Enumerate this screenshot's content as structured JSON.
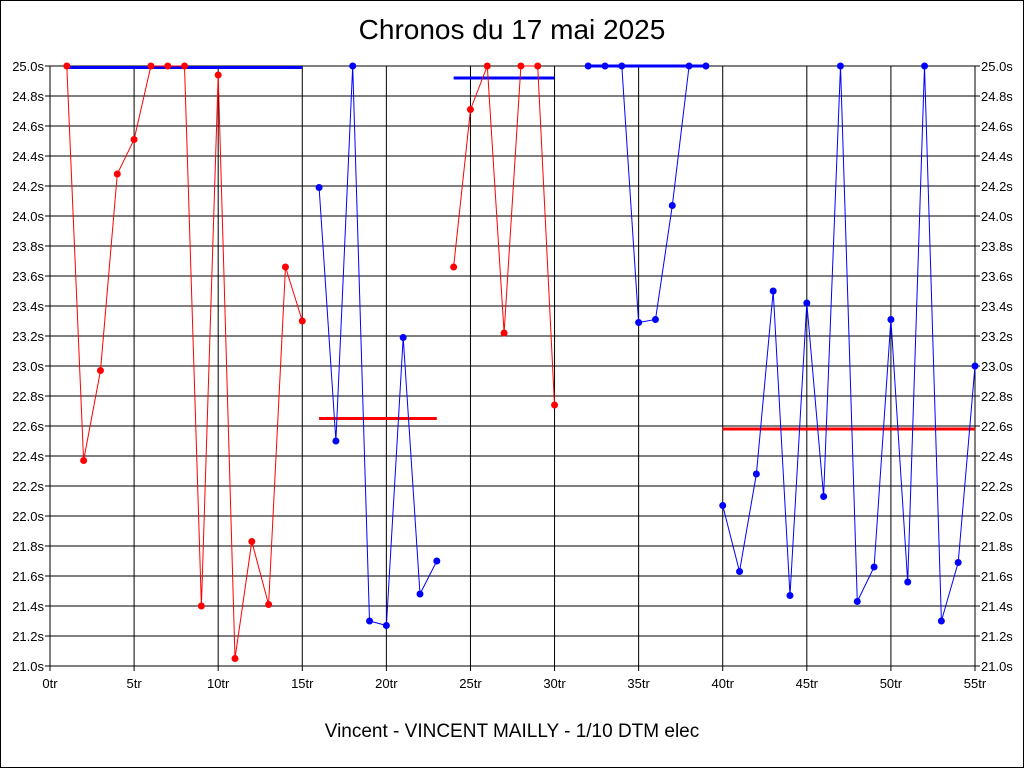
{
  "chart_data": {
    "type": "line",
    "title": "Chronos du 17 mai 2025",
    "subtitle": "Vincent - VINCENT MAILLY - 1/10 DTM elec",
    "xlim": [
      0,
      55
    ],
    "ylim": [
      21.0,
      25.0
    ],
    "x_ticks": [
      0,
      5,
      10,
      15,
      20,
      25,
      30,
      35,
      40,
      45,
      50,
      55
    ],
    "x_tick_labels": [
      "0tr",
      "5tr",
      "10tr",
      "15tr",
      "20tr",
      "25tr",
      "30tr",
      "35tr",
      "40tr",
      "45tr",
      "50tr",
      "55tr"
    ],
    "y_ticks": [
      21.0,
      21.2,
      21.4,
      21.6,
      21.8,
      22.0,
      22.2,
      22.4,
      22.6,
      22.8,
      23.0,
      23.2,
      23.4,
      23.6,
      23.8,
      24.0,
      24.2,
      24.4,
      24.6,
      24.8,
      25.0
    ],
    "y_tick_labels": [
      "21.0s",
      "21.2s",
      "21.4s",
      "21.6s",
      "21.8s",
      "22.0s",
      "22.2s",
      "22.4s",
      "22.6s",
      "22.8s",
      "23.0s",
      "23.2s",
      "23.4s",
      "23.6s",
      "23.8s",
      "24.0s",
      "24.2s",
      "24.4s",
      "24.6s",
      "24.8s",
      "25.0s"
    ],
    "grid": true,
    "series": [
      {
        "color": "#ff0000",
        "x": [
          1,
          2,
          3,
          4,
          5,
          6,
          7,
          8,
          9,
          10,
          11,
          12,
          13,
          14,
          15
        ],
        "y": [
          25.0,
          22.37,
          22.97,
          24.28,
          24.51,
          25.0,
          25.0,
          25.0,
          21.4,
          24.94,
          21.05,
          21.83,
          21.41,
          23.66,
          23.3
        ],
        "average": 24.99
      },
      {
        "color": "#0000ff",
        "x": [
          16,
          17,
          18,
          19,
          20,
          21,
          22,
          23
        ],
        "y": [
          24.19,
          22.5,
          25.0,
          21.3,
          21.27,
          23.19,
          21.48,
          21.7
        ],
        "average": 22.65
      },
      {
        "color": "#ff0000",
        "x": [
          24,
          25,
          26,
          27,
          28,
          29,
          30
        ],
        "y": [
          23.66,
          24.71,
          25.0,
          23.22,
          25.0,
          25.0,
          22.74
        ],
        "average": 24.92
      },
      {
        "color": "#0000ff",
        "x": [
          32,
          33,
          34,
          35,
          36,
          37,
          38,
          39
        ],
        "y": [
          25.0,
          25.0,
          25.0,
          23.29,
          23.31,
          24.07,
          25.0,
          25.0
        ],
        "average": 25.0
      },
      {
        "color": "#ff0000",
        "x": [],
        "y": [],
        "average": null
      },
      {
        "color": "#0000ff",
        "x": [
          40,
          41,
          42,
          43,
          44,
          45,
          46,
          47,
          48,
          49,
          50,
          51,
          52,
          53,
          54,
          55
        ],
        "y": [
          22.07,
          21.63,
          22.28,
          23.5,
          21.47,
          23.42,
          22.13,
          25.0,
          21.43,
          21.66,
          23.31,
          21.56,
          25.0,
          21.3,
          21.69,
          23.0
        ],
        "average": 22.58
      }
    ],
    "averages": [
      {
        "x_start": 1,
        "x_end": 15,
        "y": 24.99,
        "color": "#0000ff"
      },
      {
        "x_start": 16,
        "x_end": 23,
        "y": 22.65,
        "color": "#ff0000"
      },
      {
        "x_start": 24,
        "x_end": 30,
        "y": 24.92,
        "color": "#0000ff"
      },
      {
        "x_start": 32,
        "x_end": 39,
        "y": 25.0,
        "color": "#0000ff"
      },
      {
        "x_start": 40,
        "x_end": 55,
        "y": 22.58,
        "color": "#ff0000"
      }
    ]
  }
}
